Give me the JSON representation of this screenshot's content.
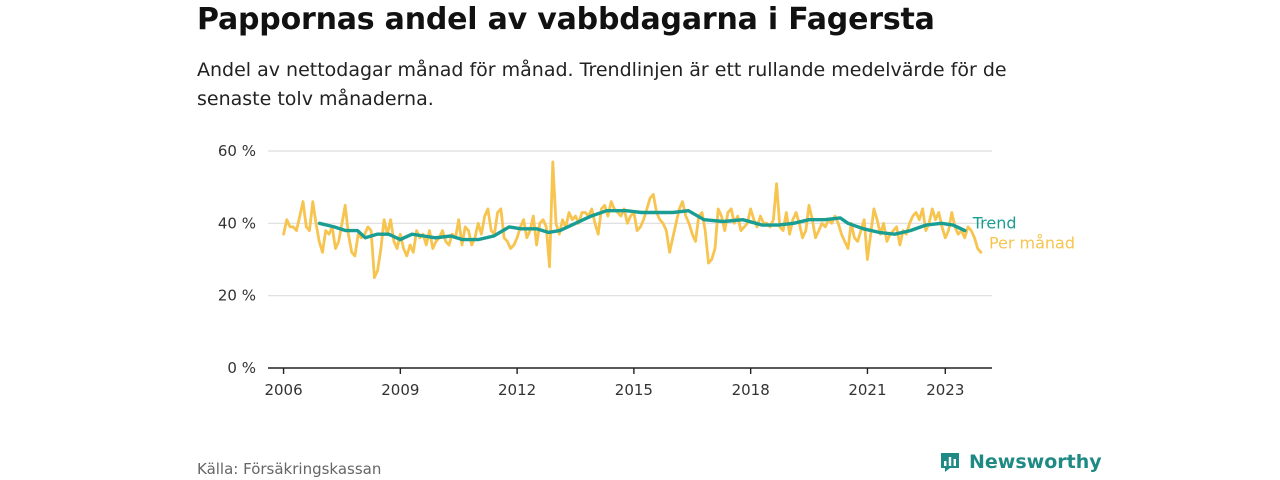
{
  "header": {
    "title": "Pappornas andel av vabbdagarna i Fagersta",
    "subtitle": "Andel av nettodagar månad för månad. Trendlinjen är ett rullande medelvärde för de senaste tolv månaderna."
  },
  "footer": {
    "source": "Källa: Försäkringskassan",
    "brand": "Newsworthy"
  },
  "colors": {
    "trend": "#1a9e93",
    "monthly": "#f6c44f",
    "grid": "#dddddd",
    "axis": "#222222",
    "brand": "#1f8a84"
  },
  "chart_data": {
    "type": "line",
    "title": "",
    "xlabel": "",
    "ylabel": "",
    "y_tick_labels": [
      "0 %",
      "20 %",
      "40 %",
      "60 %"
    ],
    "y_ticks": [
      0,
      20,
      40,
      60
    ],
    "ylim": [
      0,
      60
    ],
    "x_tick_labels": [
      "2006",
      "2009",
      "2012",
      "2015",
      "2018",
      "2021",
      "2023"
    ],
    "x_ticks": [
      2006,
      2009,
      2012,
      2015,
      2018,
      2021,
      2023
    ],
    "xlim": [
      2005.6,
      2024.2
    ],
    "grid": true,
    "series": [
      {
        "name": "Per månad",
        "color": "#f6c44f",
        "x_start": 2006.0,
        "step": 0.08333,
        "values": [
          37,
          41,
          39,
          39,
          38,
          42,
          46,
          39,
          38,
          46,
          40,
          35,
          32,
          38,
          37,
          39,
          33,
          35,
          40,
          45,
          37,
          32,
          31,
          37,
          36,
          37,
          39,
          38,
          25,
          27,
          33,
          41,
          37,
          41,
          35,
          33,
          37,
          33,
          31,
          34,
          32,
          38,
          36,
          37,
          34,
          38,
          33,
          35,
          36,
          38,
          35,
          34,
          37,
          36,
          41,
          34,
          39,
          38,
          34,
          36,
          40,
          37,
          42,
          44,
          38,
          37,
          43,
          44,
          36,
          35,
          33,
          34,
          36,
          39,
          41,
          36,
          38,
          42,
          34,
          40,
          41,
          39,
          28,
          57,
          40,
          37,
          41,
          39,
          43,
          41,
          42,
          40,
          43,
          43,
          42,
          44,
          40,
          37,
          44,
          45,
          42,
          46,
          44,
          43,
          42,
          44,
          40,
          42,
          43,
          38,
          39,
          41,
          44,
          47,
          48,
          43,
          41,
          40,
          38,
          32,
          36,
          40,
          44,
          46,
          42,
          40,
          37,
          35,
          42,
          43,
          38,
          29,
          30,
          33,
          44,
          42,
          38,
          43,
          44,
          40,
          42,
          38,
          39,
          40,
          44,
          41,
          39,
          42,
          40,
          40,
          39,
          41,
          51,
          39,
          38,
          43,
          37,
          41,
          43,
          40,
          36,
          38,
          45,
          41,
          36,
          38,
          40,
          39,
          41,
          40,
          42,
          40,
          37,
          35,
          33,
          40,
          36,
          35,
          38,
          41,
          30,
          37,
          44,
          41,
          37,
          40,
          35,
          37,
          38,
          39,
          34,
          38,
          37,
          40,
          42,
          43,
          41,
          44,
          38,
          40,
          44,
          41,
          43,
          39,
          36,
          38,
          43,
          39,
          37,
          38,
          36,
          39,
          38,
          36,
          33,
          32
        ]
      },
      {
        "name": "Trend",
        "color": "#1a9e93",
        "points": [
          [
            2006.92,
            40
          ],
          [
            2007.3,
            39
          ],
          [
            2007.6,
            38
          ],
          [
            2007.9,
            38
          ],
          [
            2008.1,
            36
          ],
          [
            2008.4,
            37
          ],
          [
            2008.7,
            37
          ],
          [
            2009.0,
            35.5
          ],
          [
            2009.3,
            37
          ],
          [
            2009.6,
            36.5
          ],
          [
            2009.9,
            36
          ],
          [
            2010.3,
            36.5
          ],
          [
            2010.6,
            35.5
          ],
          [
            2011.0,
            35.5
          ],
          [
            2011.4,
            36.5
          ],
          [
            2011.8,
            39
          ],
          [
            2012.1,
            38.5
          ],
          [
            2012.5,
            38.5
          ],
          [
            2012.8,
            37.5
          ],
          [
            2013.1,
            38
          ],
          [
            2013.5,
            40
          ],
          [
            2013.9,
            42
          ],
          [
            2014.3,
            43.5
          ],
          [
            2014.8,
            43.5
          ],
          [
            2015.2,
            43
          ],
          [
            2015.6,
            43
          ],
          [
            2016.0,
            43
          ],
          [
            2016.4,
            43.5
          ],
          [
            2016.8,
            41
          ],
          [
            2017.3,
            40.5
          ],
          [
            2017.8,
            41
          ],
          [
            2018.3,
            39.5
          ],
          [
            2018.7,
            39.5
          ],
          [
            2019.1,
            40
          ],
          [
            2019.5,
            41
          ],
          [
            2019.9,
            41
          ],
          [
            2020.3,
            41.5
          ],
          [
            2020.5,
            40
          ],
          [
            2020.9,
            38.5
          ],
          [
            2021.3,
            37.5
          ],
          [
            2021.7,
            37
          ],
          [
            2022.1,
            38
          ],
          [
            2022.5,
            39.5
          ],
          [
            2022.9,
            40
          ],
          [
            2023.2,
            39.5
          ],
          [
            2023.5,
            38
          ]
        ]
      }
    ]
  }
}
